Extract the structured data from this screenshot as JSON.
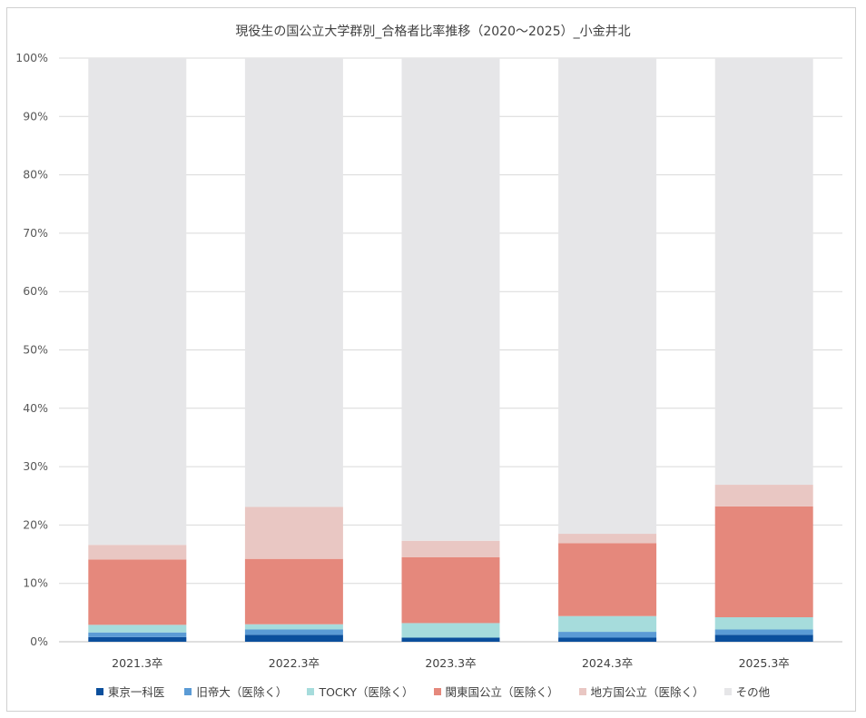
{
  "chart_data": {
    "type": "bar",
    "stacked": true,
    "normalized": true,
    "title": "現役生の国公立大学群別_合格者比率推移（2020～2025）_小金井北",
    "categories": [
      "2021.3卒",
      "2022.3卒",
      "2023.3卒",
      "2024.3卒",
      "2025.3卒"
    ],
    "ylim": [
      0,
      100
    ],
    "y_ticks": [
      "0%",
      "10%",
      "20%",
      "30%",
      "40%",
      "50%",
      "60%",
      "70%",
      "80%",
      "90%",
      "100%"
    ],
    "grid": true,
    "legend_position": "bottom",
    "series": [
      {
        "name": "東京一科医",
        "color": "#0b4f9c",
        "values": [
          0.8,
          1.2,
          0.7,
          0.7,
          1.2
        ]
      },
      {
        "name": "旧帝大（医除く）",
        "color": "#5b9bd5",
        "values": [
          0.8,
          0.9,
          0.0,
          1.0,
          0.9
        ]
      },
      {
        "name": "TOCKY（医除く）",
        "color": "#a6dcdc",
        "values": [
          1.3,
          0.9,
          2.5,
          2.7,
          2.1
        ]
      },
      {
        "name": "関東国公立（医除く）",
        "color": "#e5887c",
        "values": [
          11.2,
          11.2,
          11.3,
          12.5,
          19.0
        ]
      },
      {
        "name": "地方国公立（医除く）",
        "color": "#e9c7c3",
        "values": [
          2.5,
          8.9,
          2.8,
          1.6,
          3.7
        ]
      },
      {
        "name": "その他",
        "color": "#e6e6e8",
        "values": [
          83.4,
          76.9,
          82.7,
          81.5,
          73.1
        ]
      }
    ]
  }
}
